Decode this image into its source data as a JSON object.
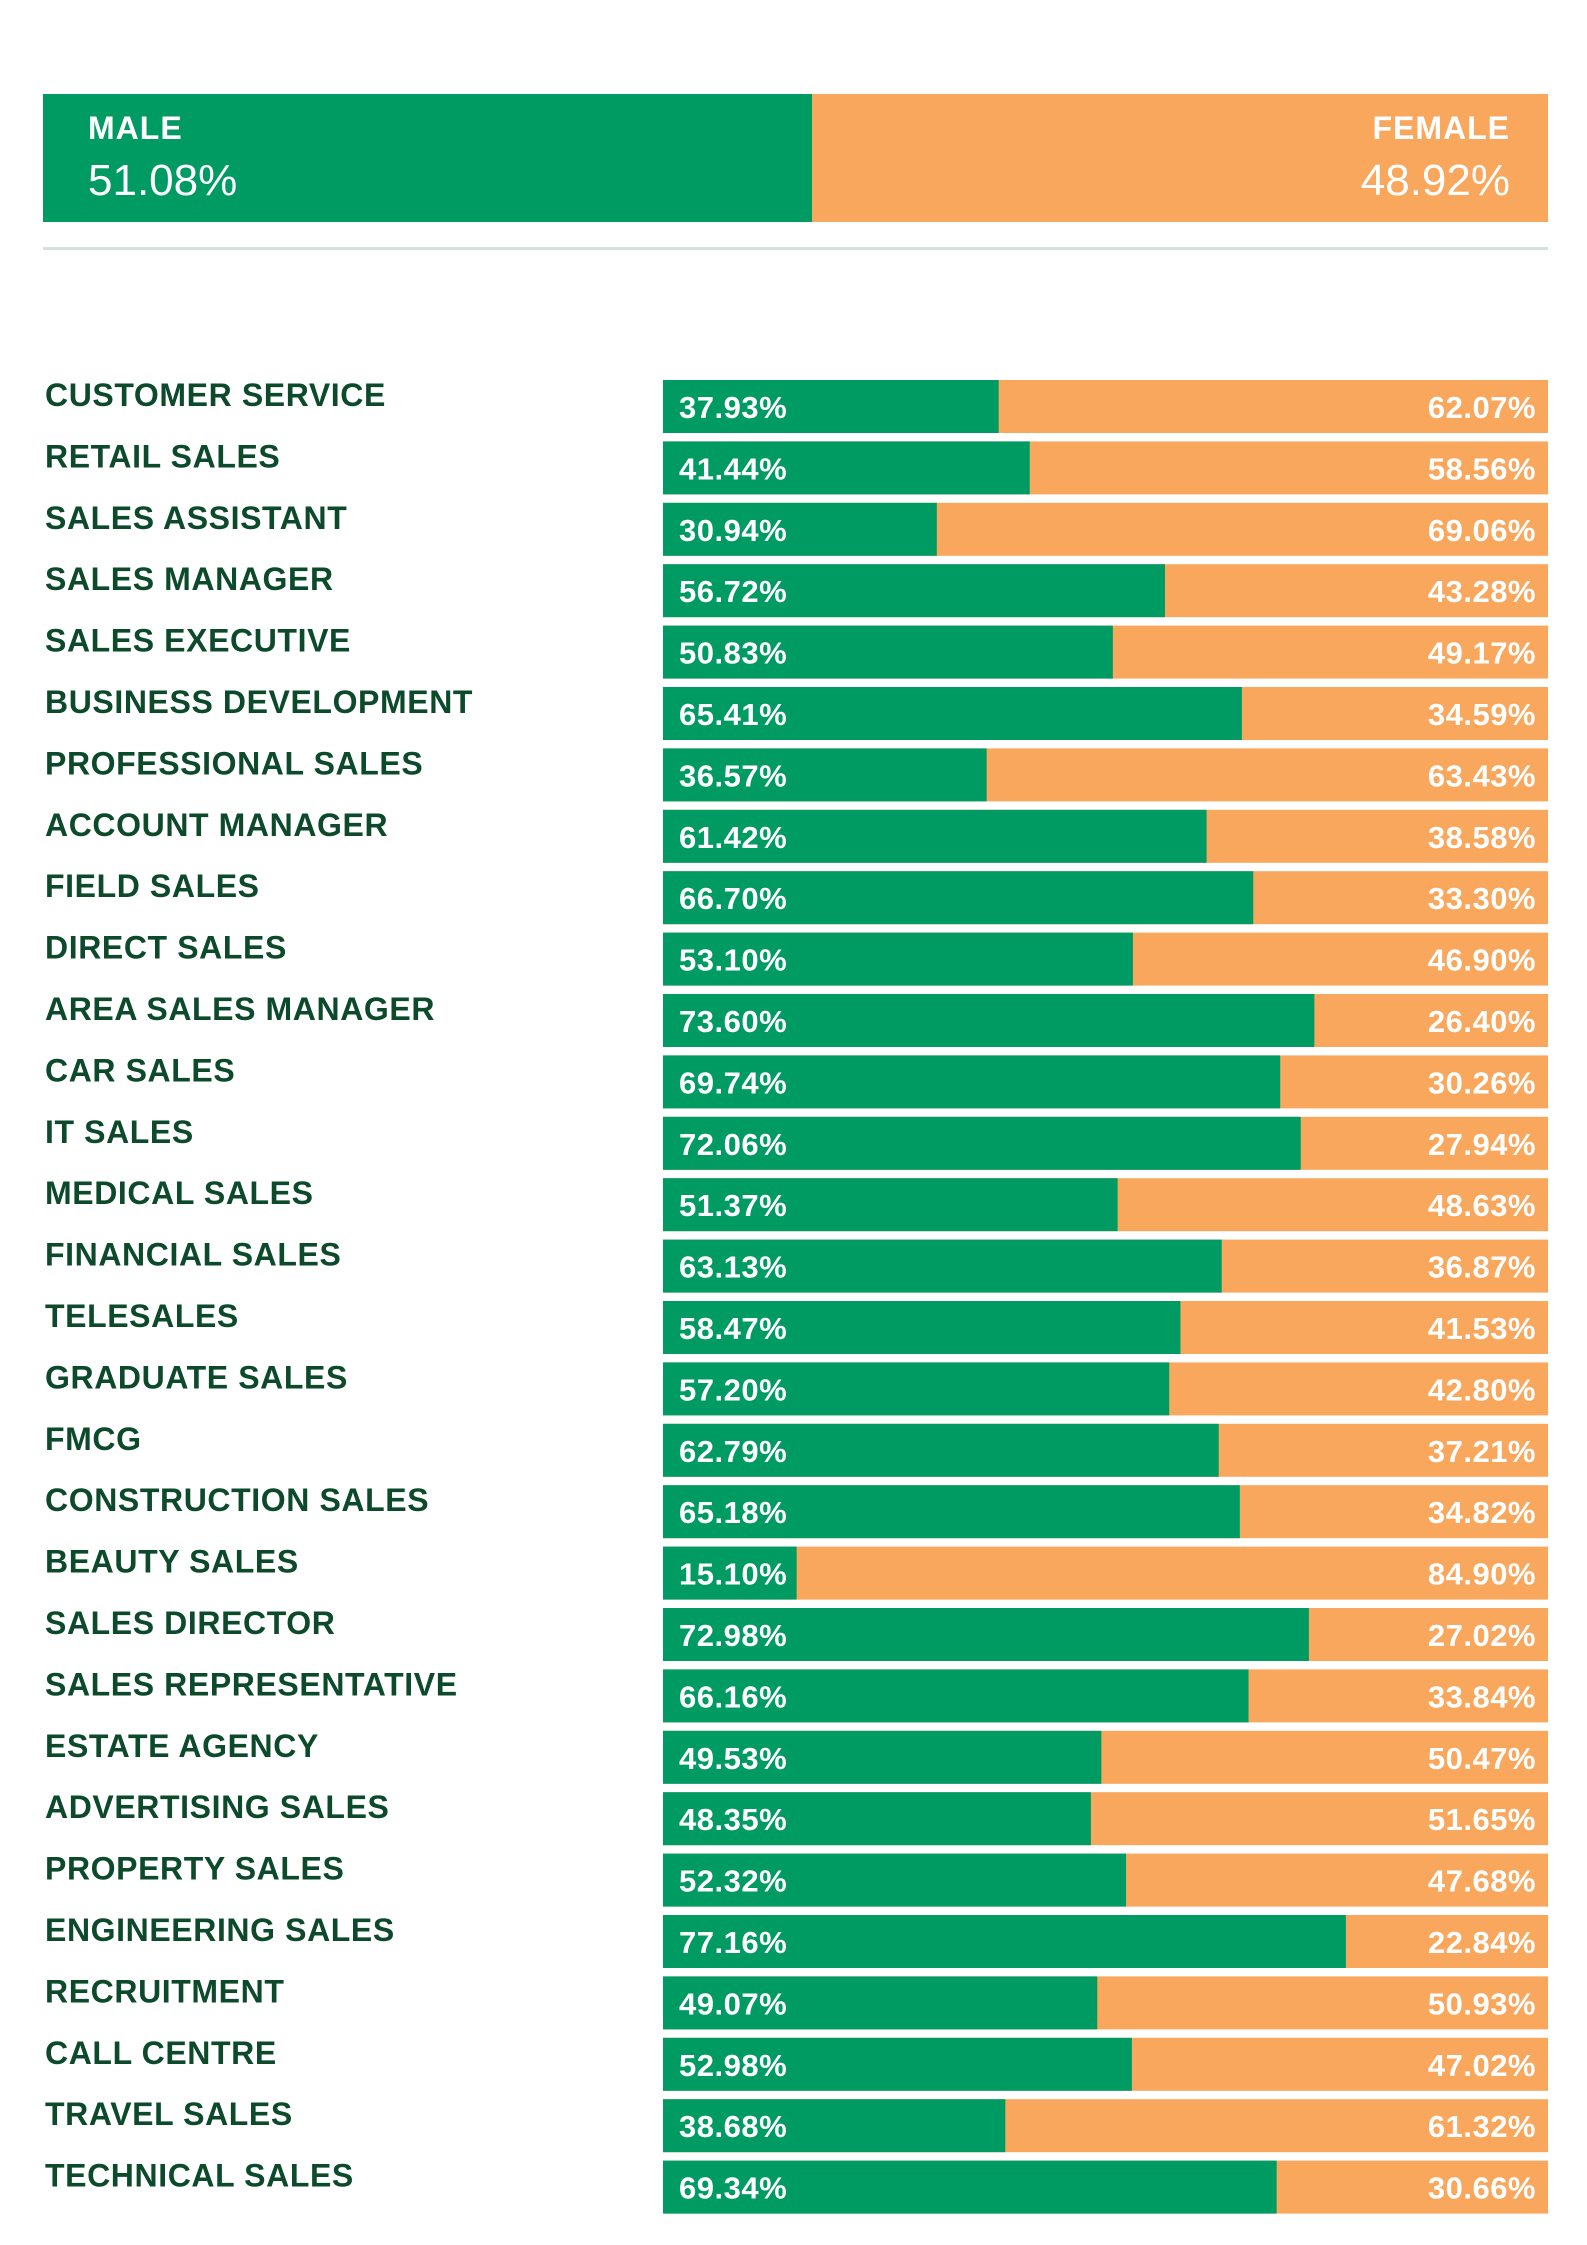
{
  "summary": {
    "male_label": "MALE",
    "male_value": "51.08%",
    "male_share": 51.08,
    "female_label": "FEMALE",
    "female_value": "48.92%",
    "female_share": 48.92
  },
  "colors": {
    "male": "#009b63",
    "female": "#f9a75c",
    "category_text": "#0d4a2c",
    "value_text": "#ffffff",
    "divider": "#d6dede"
  },
  "chart_data": {
    "type": "bar",
    "stacked": true,
    "orientation": "horizontal",
    "xlim": [
      0,
      100
    ],
    "grid": false,
    "categories": [
      "CUSTOMER SERVICE",
      "RETAIL SALES",
      "SALES ASSISTANT",
      "SALES MANAGER",
      "SALES EXECUTIVE",
      "BUSINESS DEVELOPMENT",
      "PROFESSIONAL SALES",
      "ACCOUNT MANAGER",
      "FIELD SALES",
      "DIRECT SALES",
      "AREA SALES MANAGER",
      "CAR SALES",
      "IT SALES",
      "MEDICAL SALES",
      "FINANCIAL SALES",
      "TELESALES",
      "GRADUATE SALES",
      "FMCG",
      "CONSTRUCTION SALES",
      "BEAUTY SALES",
      "SALES DIRECTOR",
      "SALES REPRESENTATIVE",
      "ESTATE AGENCY",
      "ADVERTISING SALES",
      "PROPERTY SALES",
      "ENGINEERING SALES",
      "RECRUITMENT",
      "CALL CENTRE",
      "TRAVEL SALES",
      "TECHNICAL SALES"
    ],
    "series": [
      {
        "name": "MALE",
        "values": [
          37.93,
          41.44,
          30.94,
          56.72,
          50.83,
          65.41,
          36.57,
          61.42,
          66.7,
          53.1,
          73.6,
          69.74,
          72.06,
          51.37,
          63.13,
          58.47,
          57.2,
          62.79,
          65.18,
          15.1,
          72.98,
          66.16,
          49.53,
          48.35,
          52.32,
          77.16,
          49.07,
          52.98,
          38.68,
          69.34
        ],
        "labels": [
          "37.93%",
          "41.44%",
          "30.94%",
          "56.72%",
          "50.83%",
          "65.41%",
          "36.57%",
          "61.42%",
          "66.70%",
          "53.10%",
          "73.60%",
          "69.74%",
          "72.06%",
          "51.37%",
          "63.13%",
          "58.47%",
          "57.20%",
          "62.79%",
          "65.18%",
          "15.10%",
          "72.98%",
          "66.16%",
          "49.53%",
          "48.35%",
          "52.32%",
          "77.16%",
          "49.07%",
          "52.98%",
          "38.68%",
          "69.34%"
        ]
      },
      {
        "name": "FEMALE",
        "values": [
          62.07,
          58.56,
          69.06,
          43.28,
          49.17,
          34.59,
          63.43,
          38.58,
          33.3,
          46.9,
          26.4,
          30.26,
          27.94,
          48.63,
          36.87,
          41.53,
          42.8,
          37.21,
          34.82,
          84.9,
          27.02,
          33.84,
          50.47,
          51.65,
          47.68,
          22.84,
          50.93,
          47.02,
          61.32,
          30.66
        ],
        "labels": [
          "62.07%",
          "58.56%",
          "69.06%",
          "43.28%",
          "49.17%",
          "34.59%",
          "63.43%",
          "38.58%",
          "33.30%",
          "46.90%",
          "26.40%",
          "30.26%",
          "27.94%",
          "48.63%",
          "36.87%",
          "41.53%",
          "42.80%",
          "37.21%",
          "34.82%",
          "84.90%",
          "27.02%",
          "33.84%",
          "50.47%",
          "51.65%",
          "47.68%",
          "22.84%",
          "50.93%",
          "47.02%",
          "61.32%",
          "30.66%"
        ]
      }
    ]
  }
}
